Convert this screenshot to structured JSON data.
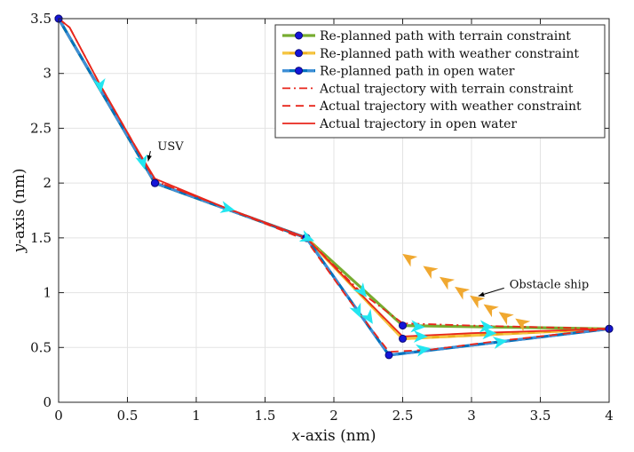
{
  "chart_data": {
    "type": "line",
    "xlabel_var": "x",
    "xlabel_rest": "-axis (nm)",
    "ylabel_var": "y",
    "ylabel_rest": "-axis (nm)",
    "xlim": [
      0,
      4
    ],
    "ylim": [
      0,
      3.5
    ],
    "xticks": [
      0,
      0.5,
      1,
      1.5,
      2,
      2.5,
      3,
      3.5,
      4
    ],
    "xtick_labels": [
      "0",
      "0.5",
      "1",
      "1.5",
      "2",
      "2.5",
      "3",
      "3.5",
      "4"
    ],
    "yticks": [
      0,
      0.5,
      1,
      1.5,
      2,
      2.5,
      3,
      3.5
    ],
    "ytick_labels": [
      "0",
      "0.5",
      "1",
      "1.5",
      "2",
      "2.5",
      "3",
      "3.5"
    ],
    "grid": true,
    "legend_position": "top-right",
    "series": [
      {
        "name": "Re-planned path with terrain constraint",
        "kind": "planned",
        "color": "#77ac30",
        "dash": "solid",
        "points": [
          [
            0,
            3.5
          ],
          [
            0.7,
            2.0
          ],
          [
            1.8,
            1.5
          ],
          [
            2.5,
            0.7
          ],
          [
            4.0,
            0.67
          ]
        ]
      },
      {
        "name": "Re-planned path with weather constraint",
        "kind": "planned",
        "color": "#edb120",
        "dash": "dashed",
        "points": [
          [
            0,
            3.5
          ],
          [
            0.7,
            2.0
          ],
          [
            1.8,
            1.5
          ],
          [
            2.5,
            0.58
          ],
          [
            4.0,
            0.67
          ]
        ]
      },
      {
        "name": "Re-planned path in open water",
        "kind": "planned",
        "color": "#0072bd",
        "dash": "dashed",
        "points": [
          [
            0,
            3.5
          ],
          [
            0.7,
            2.0
          ],
          [
            1.8,
            1.5
          ],
          [
            2.4,
            0.43
          ],
          [
            4.0,
            0.67
          ]
        ]
      },
      {
        "name": "Actual trajectory with terrain constraint",
        "kind": "actual",
        "color": "#e8261b",
        "dash": "dashdot",
        "points": [
          [
            0,
            3.5
          ],
          [
            0.08,
            3.42
          ],
          [
            0.3,
            2.9
          ],
          [
            0.55,
            2.35
          ],
          [
            0.7,
            2.02
          ],
          [
            1.2,
            1.78
          ],
          [
            1.8,
            1.5
          ],
          [
            2.2,
            1.0
          ],
          [
            2.5,
            0.72
          ],
          [
            3.0,
            0.7
          ],
          [
            4.0,
            0.67
          ]
        ]
      },
      {
        "name": "Actual trajectory with weather constraint",
        "kind": "actual",
        "color": "#e8261b",
        "dash": "dashed",
        "points": [
          [
            0,
            3.5
          ],
          [
            0.08,
            3.42
          ],
          [
            0.3,
            2.9
          ],
          [
            0.55,
            2.35
          ],
          [
            0.7,
            2.02
          ],
          [
            1.2,
            1.78
          ],
          [
            1.8,
            1.48
          ],
          [
            2.1,
            0.95
          ],
          [
            2.4,
            0.46
          ],
          [
            2.7,
            0.48
          ],
          [
            3.2,
            0.56
          ],
          [
            4.0,
            0.67
          ]
        ]
      },
      {
        "name": "Actual trajectory in open water",
        "kind": "actual",
        "color": "#e8261b",
        "dash": "solid",
        "points": [
          [
            0,
            3.5
          ],
          [
            0.08,
            3.42
          ],
          [
            0.3,
            2.9
          ],
          [
            0.55,
            2.35
          ],
          [
            0.7,
            2.04
          ],
          [
            1.2,
            1.78
          ],
          [
            1.8,
            1.5
          ],
          [
            2.2,
            0.98
          ],
          [
            2.5,
            0.6
          ],
          [
            3.0,
            0.63
          ],
          [
            4.0,
            0.67
          ]
        ]
      }
    ],
    "usv_heading_arrows": [
      {
        "x": 0.3,
        "y": 2.9,
        "dx": 0.02,
        "dy": -0.2
      },
      {
        "x": 0.61,
        "y": 2.2,
        "dx": 0.03,
        "dy": -0.15
      },
      {
        "x": 1.22,
        "y": 1.77,
        "dx": 0.1,
        "dy": -0.03
      },
      {
        "x": 1.8,
        "y": 1.5,
        "dx": 0.08,
        "dy": -0.04
      },
      {
        "x": 2.2,
        "y": 1.02,
        "dx": 0.06,
        "dy": -0.1
      },
      {
        "x": 2.17,
        "y": 0.84,
        "dx": 0.05,
        "dy": -0.14
      },
      {
        "x": 2.25,
        "y": 0.78,
        "dx": 0.06,
        "dy": -0.12
      },
      {
        "x": 2.6,
        "y": 0.69,
        "dx": 0.1,
        "dy": -0.01
      },
      {
        "x": 2.62,
        "y": 0.6,
        "dx": 0.1,
        "dy": 0.0
      },
      {
        "x": 2.64,
        "y": 0.48,
        "dx": 0.1,
        "dy": 0.02
      },
      {
        "x": 3.1,
        "y": 0.69,
        "dx": 0.1,
        "dy": -0.01
      },
      {
        "x": 3.12,
        "y": 0.63,
        "dx": 0.1,
        "dy": 0.0
      },
      {
        "x": 3.2,
        "y": 0.55,
        "dx": 0.1,
        "dy": 0.02
      }
    ],
    "obstacle_ship_arrows": [
      {
        "x": 2.55,
        "y": 1.31
      },
      {
        "x": 2.7,
        "y": 1.2
      },
      {
        "x": 2.82,
        "y": 1.1
      },
      {
        "x": 2.93,
        "y": 1.01
      },
      {
        "x": 3.04,
        "y": 0.93
      },
      {
        "x": 3.14,
        "y": 0.85
      },
      {
        "x": 3.25,
        "y": 0.78
      },
      {
        "x": 3.37,
        "y": 0.72
      }
    ],
    "annotations": [
      {
        "text": "USV",
        "x": 0.68,
        "y": 2.3,
        "arrow_to": [
          0.65,
          2.2
        ]
      },
      {
        "text": "Obstacle ship",
        "x": 3.25,
        "y": 1.05,
        "arrow_to": [
          3.05,
          0.97
        ]
      }
    ],
    "colors": {
      "usv_arrow": "#22e6f0",
      "obstacle_arrow": "#f0a830",
      "marker_fill": "#1515d8",
      "grid": "#e3e3e3"
    }
  }
}
